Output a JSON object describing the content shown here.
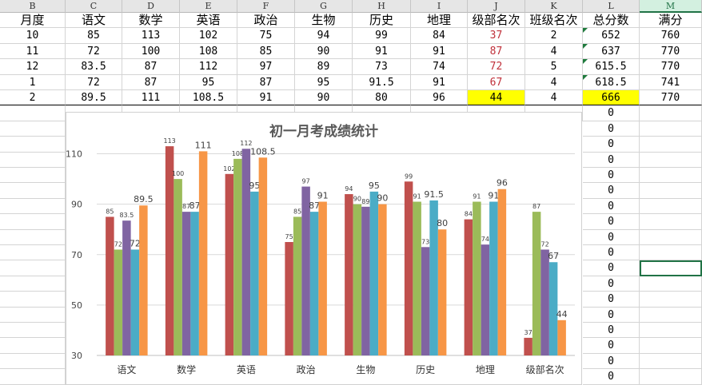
{
  "columns": [
    "B",
    "C",
    "D",
    "E",
    "F",
    "G",
    "H",
    "I",
    "J",
    "K",
    "L",
    "M"
  ],
  "selected_column": "M",
  "table": {
    "headers": [
      "月度",
      "语文",
      "数学",
      "英语",
      "政治",
      "生物",
      "历史",
      "地理",
      "级部名次",
      "班级名次",
      "总分数",
      "满分"
    ],
    "rows": [
      [
        "10",
        "85",
        "113",
        "102",
        "75",
        "94",
        "99",
        "84",
        "37",
        "2",
        "652",
        "760"
      ],
      [
        "11",
        "72",
        "100",
        "108",
        "85",
        "90",
        "91",
        "91",
        "87",
        "4",
        "637",
        "770"
      ],
      [
        "12",
        "83.5",
        "87",
        "112",
        "97",
        "89",
        "73",
        "74",
        "72",
        "5",
        "615.5",
        "770"
      ],
      [
        "1",
        "72",
        "87",
        "95",
        "87",
        "95",
        "91.5",
        "91",
        "67",
        "4",
        "618.5",
        "741"
      ],
      [
        "2",
        "89.5",
        "111",
        "108.5",
        "91",
        "90",
        "80",
        "96",
        "44",
        "4",
        "666",
        "770"
      ]
    ],
    "l_column_below": [
      "0",
      "0",
      "0",
      "0",
      "0",
      "0",
      "0",
      "0",
      "0",
      "0",
      "0",
      "0",
      "0",
      "0",
      "0",
      "0",
      "0",
      "0"
    ]
  },
  "chart_data": {
    "type": "bar",
    "title": "初一月考成绩统计",
    "categories": [
      "语文",
      "数学",
      "英语",
      "政治",
      "生物",
      "历史",
      "地理",
      "级部名次"
    ],
    "series": [
      {
        "values": [
          85,
          113,
          102,
          75,
          94,
          99,
          84,
          37
        ]
      },
      {
        "values": [
          72,
          100,
          108,
          85,
          90,
          91,
          91,
          87
        ]
      },
      {
        "values": [
          83.5,
          87,
          112,
          97,
          89,
          73,
          74,
          72
        ]
      },
      {
        "values": [
          72,
          87,
          95,
          87,
          95,
          91.5,
          91,
          67
        ]
      },
      {
        "values": [
          89.5,
          111,
          108.5,
          91,
          90,
          80,
          96,
          44
        ]
      }
    ],
    "colors": [
      "#c0504d",
      "#9bbb59",
      "#8064a2",
      "#4bacc6",
      "#f79646"
    ],
    "ylim": [
      30,
      120
    ],
    "yticks": [
      30,
      50,
      70,
      90,
      110
    ],
    "grid": true,
    "legend": "none"
  }
}
